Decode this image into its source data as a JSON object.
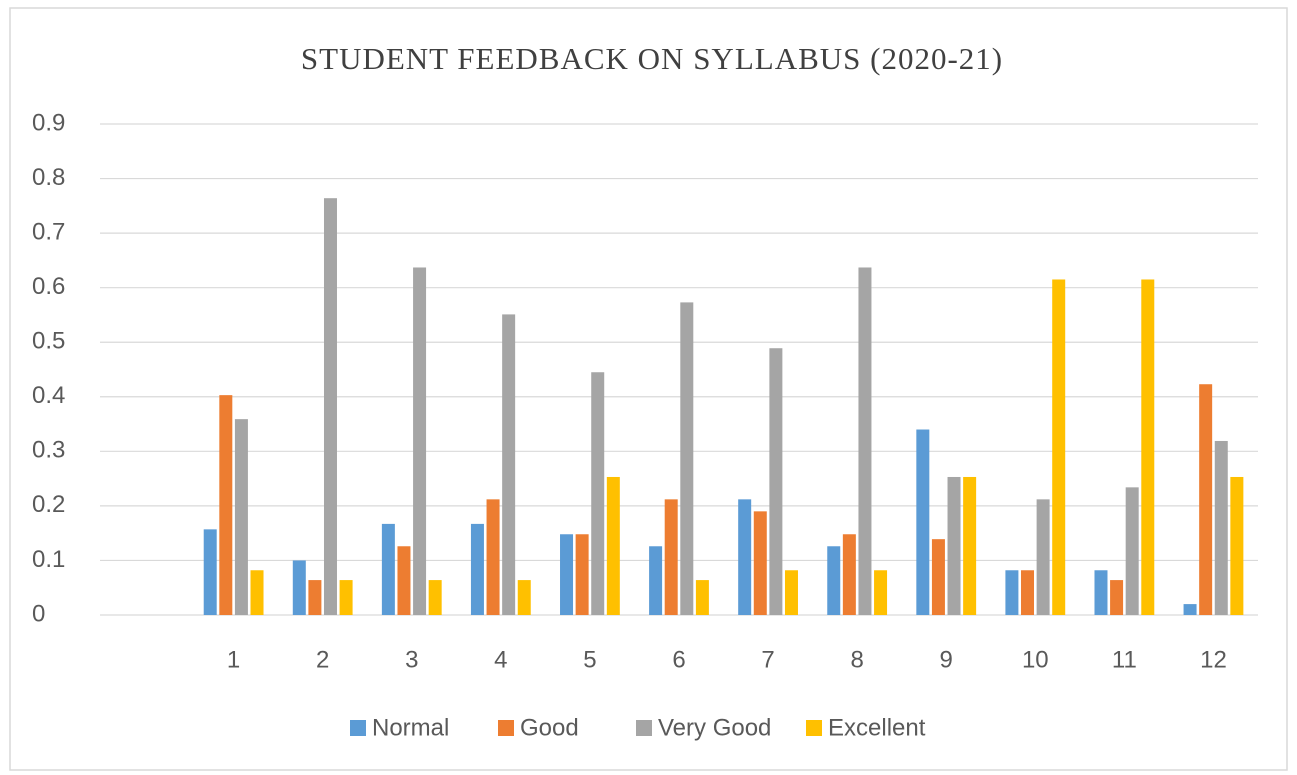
{
  "chart_data": {
    "type": "bar",
    "title": "STUDENT  FEEDBACK  ON SYLLABUS  (2020-21)",
    "categories": [
      null,
      "1",
      "2",
      "3",
      "4",
      "5",
      "6",
      "7",
      "8",
      "9",
      "10",
      "11",
      "12"
    ],
    "series": [
      {
        "name": "Normal",
        "color": "#5b9bd5",
        "values": [
          null,
          0.157,
          0.1,
          0.167,
          0.167,
          0.148,
          0.126,
          0.212,
          0.126,
          0.34,
          0.082,
          0.082,
          0.02
        ]
      },
      {
        "name": "Good",
        "color": "#ed7d31",
        "values": [
          null,
          0.403,
          0.064,
          0.126,
          0.212,
          0.148,
          0.212,
          0.19,
          0.148,
          0.139,
          0.082,
          0.064,
          0.423
        ]
      },
      {
        "name": "Very Good",
        "color": "#a5a5a5",
        "values": [
          null,
          0.359,
          0.764,
          0.637,
          0.551,
          0.445,
          0.573,
          0.489,
          0.637,
          0.253,
          0.212,
          0.234,
          0.319
        ]
      },
      {
        "name": "Excellent",
        "color": "#ffc000",
        "values": [
          null,
          0.082,
          0.064,
          0.064,
          0.064,
          0.253,
          0.064,
          0.082,
          0.082,
          0.253,
          0.615,
          0.615,
          0.253
        ]
      }
    ],
    "ylim": [
      0,
      0.9
    ],
    "yticks": [
      0,
      0.1,
      0.2,
      0.3,
      0.4,
      0.5,
      0.6,
      0.7,
      0.8,
      0.9
    ],
    "grid": true,
    "legend": "bottom"
  }
}
